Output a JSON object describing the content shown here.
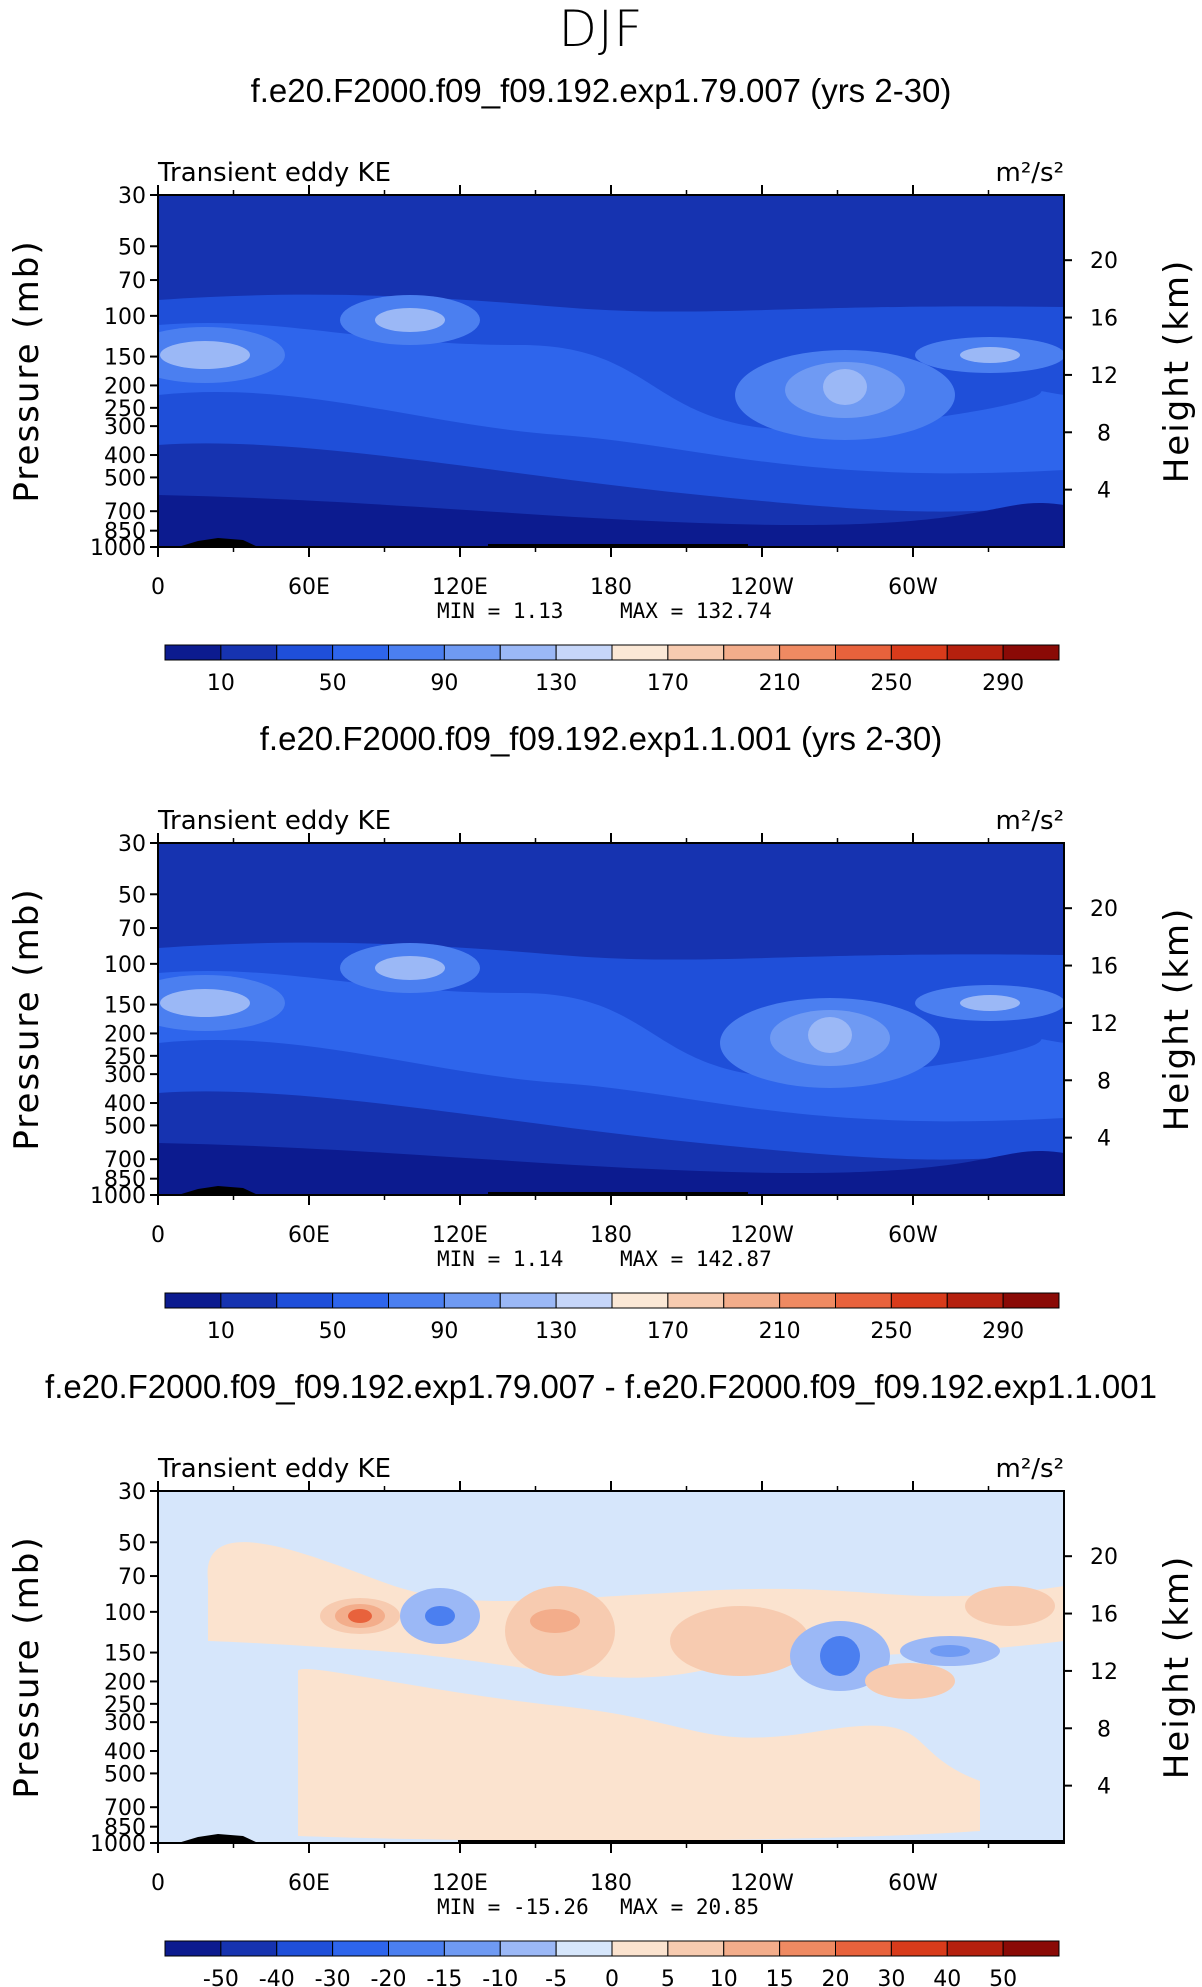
{
  "figure_title": "DJF",
  "chart_data": [
    {
      "type": "heatmap",
      "title": "f.e20.F2000.f09_f09.192.exp1.79.007 (yrs 2-30)",
      "left_label": "Transient eddy KE",
      "units": "m²/s²",
      "ylabel": "Pressure (mb)",
      "y2label": "Height (km)",
      "x_ticks": [
        "0",
        "60E",
        "120E",
        "180",
        "120W",
        "60W"
      ],
      "y_ticks": [
        "30",
        "50",
        "70",
        "100",
        "150",
        "200",
        "250",
        "300",
        "400",
        "500",
        "700",
        "850",
        "1000"
      ],
      "y2_ticks": [
        "20",
        "16",
        "12",
        "8",
        "4"
      ],
      "stats_min": "MIN =    1.13",
      "stats_max": "MAX = 132.74",
      "colorbar_labels": [
        "10",
        "50",
        "90",
        "130",
        "170",
        "210",
        "250",
        "290"
      ],
      "colorbar_colors": [
        "#0c1b8f",
        "#1633b0",
        "#1f4fd9",
        "#2e65ec",
        "#4b7ff0",
        "#6f9af3",
        "#9bb8f6",
        "#c6d6f9",
        "#fbe8d6",
        "#f7cbb0",
        "#f3ad8b",
        "#ef8a62",
        "#e8623c",
        "#d83b1b",
        "#b5200e",
        "#8a0a06"
      ],
      "ylim": [
        1000,
        30
      ],
      "xlim": [
        0,
        360
      ]
    },
    {
      "type": "heatmap",
      "title": "f.e20.F2000.f09_f09.192.exp1.1.001 (yrs 2-30)",
      "left_label": "Transient eddy KE",
      "units": "m²/s²",
      "ylabel": "Pressure (mb)",
      "y2label": "Height (km)",
      "x_ticks": [
        "0",
        "60E",
        "120E",
        "180",
        "120W",
        "60W"
      ],
      "y_ticks": [
        "30",
        "50",
        "70",
        "100",
        "150",
        "200",
        "250",
        "300",
        "400",
        "500",
        "700",
        "850",
        "1000"
      ],
      "y2_ticks": [
        "20",
        "16",
        "12",
        "8",
        "4"
      ],
      "stats_min": "MIN =    1.14",
      "stats_max": "MAX = 142.87",
      "colorbar_labels": [
        "10",
        "50",
        "90",
        "130",
        "170",
        "210",
        "250",
        "290"
      ],
      "colorbar_colors": [
        "#0c1b8f",
        "#1633b0",
        "#1f4fd9",
        "#2e65ec",
        "#4b7ff0",
        "#6f9af3",
        "#9bb8f6",
        "#c6d6f9",
        "#fbe8d6",
        "#f7cbb0",
        "#f3ad8b",
        "#ef8a62",
        "#e8623c",
        "#d83b1b",
        "#b5200e",
        "#8a0a06"
      ],
      "ylim": [
        1000,
        30
      ],
      "xlim": [
        0,
        360
      ]
    },
    {
      "type": "heatmap",
      "title": "f.e20.F2000.f09_f09.192.exp1.79.007 - f.e20.F2000.f09_f09.192.exp1.1.001",
      "left_label": "Transient eddy KE",
      "units": "m²/s²",
      "ylabel": "Pressure (mb)",
      "y2label": "Height (km)",
      "x_ticks": [
        "0",
        "60E",
        "120E",
        "180",
        "120W",
        "60W"
      ],
      "y_ticks": [
        "30",
        "50",
        "70",
        "100",
        "150",
        "200",
        "250",
        "300",
        "400",
        "500",
        "700",
        "850",
        "1000"
      ],
      "y2_ticks": [
        "20",
        "16",
        "12",
        "8",
        "4"
      ],
      "stats_min": "MIN = -15.26",
      "stats_max": "MAX =  20.85",
      "colorbar_labels": [
        "-50",
        "-40",
        "-30",
        "-20",
        "-15",
        "-10",
        "-5",
        "0",
        "5",
        "10",
        "15",
        "20",
        "30",
        "40",
        "50"
      ],
      "colorbar_colors": [
        "#0c1b8f",
        "#1633b0",
        "#1f4fd9",
        "#2e65ec",
        "#4b7ff0",
        "#6f9af3",
        "#9bb8f6",
        "#d6e6fb",
        "#fbe3cf",
        "#f7cbb0",
        "#f3ad8b",
        "#ef8a62",
        "#e8623c",
        "#d83b1b",
        "#b5200e",
        "#8a0a06"
      ],
      "ylim": [
        1000,
        30
      ],
      "xlim": [
        0,
        360
      ]
    }
  ]
}
